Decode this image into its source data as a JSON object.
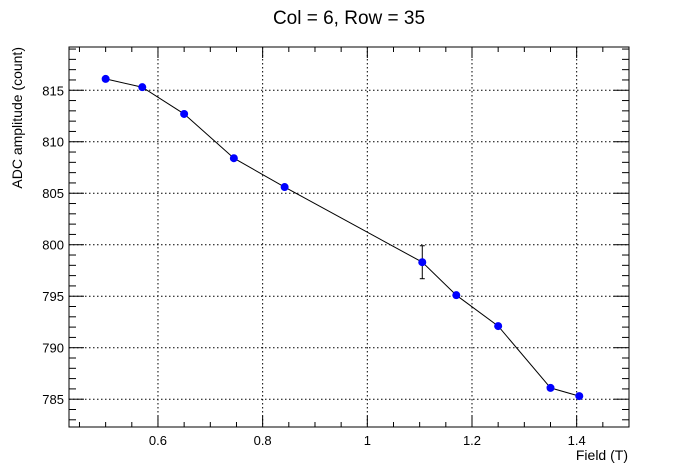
{
  "chart_data": {
    "type": "scatter",
    "title": "Col = 6, Row = 35",
    "xlabel": "Field (T)",
    "ylabel": "ADC amplitude (count)",
    "xlim": [
      0.43,
      1.5
    ],
    "ylim": [
      782.3,
      819.2
    ],
    "xticks": [
      0.6,
      0.8,
      1.0,
      1.2,
      1.4
    ],
    "xtick_labels": [
      "0.6",
      "0.8",
      "1",
      "1.2",
      "1.4"
    ],
    "yticks": [
      785,
      790,
      795,
      800,
      805,
      810,
      815
    ],
    "ytick_labels": [
      "785",
      "790",
      "795",
      "800",
      "805",
      "810",
      "815"
    ],
    "grid": true,
    "series": [
      {
        "x": [
          0.5,
          0.57,
          0.65,
          0.745,
          0.842,
          1.105,
          1.17,
          1.25,
          1.35,
          1.405
        ],
        "y": [
          816.1,
          815.3,
          812.7,
          808.4,
          805.6,
          798.3,
          795.1,
          792.1,
          786.1,
          785.3
        ],
        "y_err": [
          0.25,
          0.25,
          0.25,
          0.25,
          0.25,
          1.6,
          0.25,
          0.25,
          0.25,
          0.25
        ],
        "marker_color": "#0000ff",
        "line_color": "#000000"
      }
    ]
  }
}
